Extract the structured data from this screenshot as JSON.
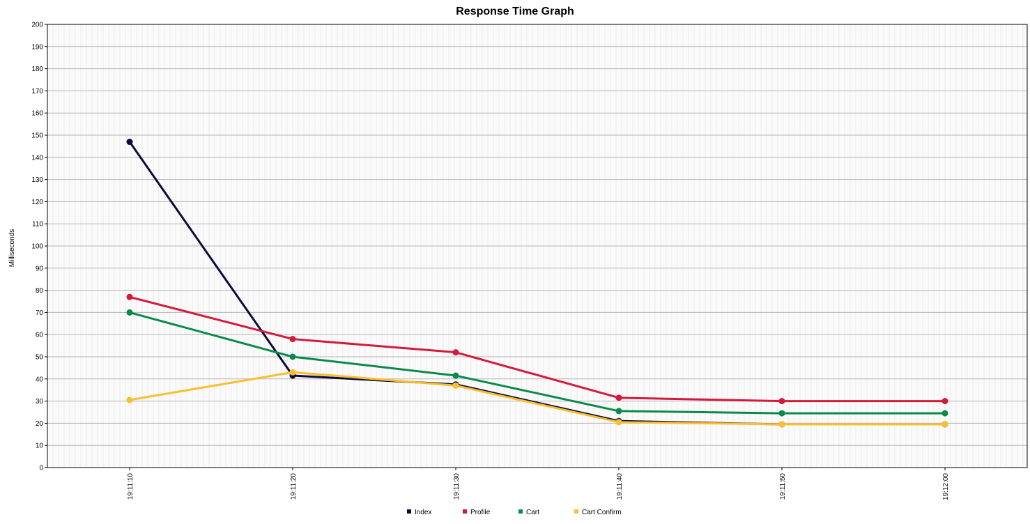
{
  "chart_data": {
    "type": "line",
    "title": "Response Time Graph",
    "xlabel": "",
    "ylabel": "Milliseconds",
    "ylim": [
      0,
      200
    ],
    "yticks": [
      0,
      10,
      20,
      30,
      40,
      50,
      60,
      70,
      80,
      90,
      100,
      110,
      120,
      130,
      140,
      150,
      160,
      170,
      180,
      190,
      200
    ],
    "categories": [
      "19:11:10",
      "19:11:20",
      "19:11:30",
      "19:11:40",
      "19:11:50",
      "19:12:00"
    ],
    "grid": true,
    "legend_position": "bottom",
    "series": [
      {
        "name": "Index",
        "color": "#0b0b3b",
        "values": [
          147,
          41.5,
          37.5,
          21,
          19.5,
          19.5
        ]
      },
      {
        "name": "Profile",
        "color": "#d41a3a",
        "values": [
          77,
          58,
          52,
          31.5,
          30,
          30
        ]
      },
      {
        "name": "Cart",
        "color": "#0a8a4a",
        "values": [
          70,
          50,
          41.5,
          25.5,
          24.5,
          24.5
        ]
      },
      {
        "name": "Cart Confirm",
        "color": "#fbbe2c",
        "values": [
          30.5,
          43,
          37,
          20.5,
          19.5,
          19.5
        ]
      }
    ]
  }
}
